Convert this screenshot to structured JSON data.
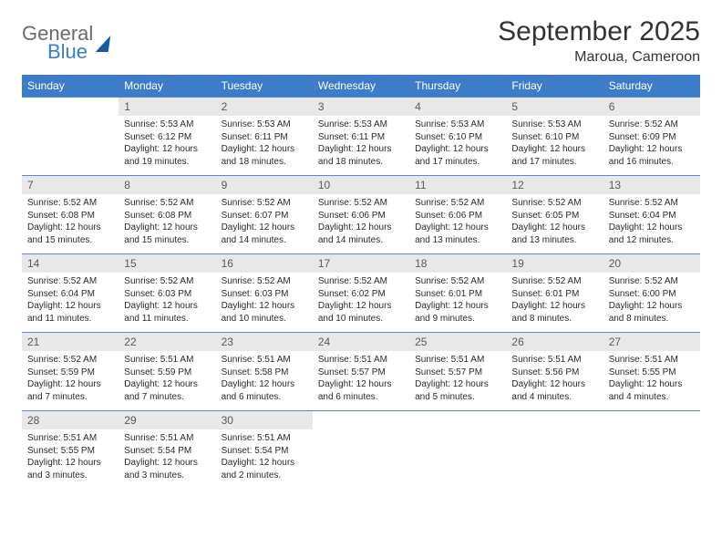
{
  "logo": {
    "word1": "General",
    "word2": "Blue"
  },
  "title": "September 2025",
  "subtitle": "Maroua, Cameroon",
  "colors": {
    "header_bg": "#3d7cc9",
    "header_text": "#ffffff",
    "daynum_bg": "#e8e8e8",
    "daynum_text": "#5a5a5a",
    "row_border": "#5a8bc4",
    "body_text": "#2a2a2a",
    "title_text": "#333333",
    "logo_gray": "#6a6a6a",
    "logo_blue": "#3d7cc9"
  },
  "day_headers": [
    "Sunday",
    "Monday",
    "Tuesday",
    "Wednesday",
    "Thursday",
    "Friday",
    "Saturday"
  ],
  "weeks": [
    [
      {
        "n": "",
        "lines": []
      },
      {
        "n": "1",
        "lines": [
          "Sunrise: 5:53 AM",
          "Sunset: 6:12 PM",
          "Daylight: 12 hours and 19 minutes."
        ]
      },
      {
        "n": "2",
        "lines": [
          "Sunrise: 5:53 AM",
          "Sunset: 6:11 PM",
          "Daylight: 12 hours and 18 minutes."
        ]
      },
      {
        "n": "3",
        "lines": [
          "Sunrise: 5:53 AM",
          "Sunset: 6:11 PM",
          "Daylight: 12 hours and 18 minutes."
        ]
      },
      {
        "n": "4",
        "lines": [
          "Sunrise: 5:53 AM",
          "Sunset: 6:10 PM",
          "Daylight: 12 hours and 17 minutes."
        ]
      },
      {
        "n": "5",
        "lines": [
          "Sunrise: 5:53 AM",
          "Sunset: 6:10 PM",
          "Daylight: 12 hours and 17 minutes."
        ]
      },
      {
        "n": "6",
        "lines": [
          "Sunrise: 5:52 AM",
          "Sunset: 6:09 PM",
          "Daylight: 12 hours and 16 minutes."
        ]
      }
    ],
    [
      {
        "n": "7",
        "lines": [
          "Sunrise: 5:52 AM",
          "Sunset: 6:08 PM",
          "Daylight: 12 hours and 15 minutes."
        ]
      },
      {
        "n": "8",
        "lines": [
          "Sunrise: 5:52 AM",
          "Sunset: 6:08 PM",
          "Daylight: 12 hours and 15 minutes."
        ]
      },
      {
        "n": "9",
        "lines": [
          "Sunrise: 5:52 AM",
          "Sunset: 6:07 PM",
          "Daylight: 12 hours and 14 minutes."
        ]
      },
      {
        "n": "10",
        "lines": [
          "Sunrise: 5:52 AM",
          "Sunset: 6:06 PM",
          "Daylight: 12 hours and 14 minutes."
        ]
      },
      {
        "n": "11",
        "lines": [
          "Sunrise: 5:52 AM",
          "Sunset: 6:06 PM",
          "Daylight: 12 hours and 13 minutes."
        ]
      },
      {
        "n": "12",
        "lines": [
          "Sunrise: 5:52 AM",
          "Sunset: 6:05 PM",
          "Daylight: 12 hours and 13 minutes."
        ]
      },
      {
        "n": "13",
        "lines": [
          "Sunrise: 5:52 AM",
          "Sunset: 6:04 PM",
          "Daylight: 12 hours and 12 minutes."
        ]
      }
    ],
    [
      {
        "n": "14",
        "lines": [
          "Sunrise: 5:52 AM",
          "Sunset: 6:04 PM",
          "Daylight: 12 hours and 11 minutes."
        ]
      },
      {
        "n": "15",
        "lines": [
          "Sunrise: 5:52 AM",
          "Sunset: 6:03 PM",
          "Daylight: 12 hours and 11 minutes."
        ]
      },
      {
        "n": "16",
        "lines": [
          "Sunrise: 5:52 AM",
          "Sunset: 6:03 PM",
          "Daylight: 12 hours and 10 minutes."
        ]
      },
      {
        "n": "17",
        "lines": [
          "Sunrise: 5:52 AM",
          "Sunset: 6:02 PM",
          "Daylight: 12 hours and 10 minutes."
        ]
      },
      {
        "n": "18",
        "lines": [
          "Sunrise: 5:52 AM",
          "Sunset: 6:01 PM",
          "Daylight: 12 hours and 9 minutes."
        ]
      },
      {
        "n": "19",
        "lines": [
          "Sunrise: 5:52 AM",
          "Sunset: 6:01 PM",
          "Daylight: 12 hours and 8 minutes."
        ]
      },
      {
        "n": "20",
        "lines": [
          "Sunrise: 5:52 AM",
          "Sunset: 6:00 PM",
          "Daylight: 12 hours and 8 minutes."
        ]
      }
    ],
    [
      {
        "n": "21",
        "lines": [
          "Sunrise: 5:52 AM",
          "Sunset: 5:59 PM",
          "Daylight: 12 hours and 7 minutes."
        ]
      },
      {
        "n": "22",
        "lines": [
          "Sunrise: 5:51 AM",
          "Sunset: 5:59 PM",
          "Daylight: 12 hours and 7 minutes."
        ]
      },
      {
        "n": "23",
        "lines": [
          "Sunrise: 5:51 AM",
          "Sunset: 5:58 PM",
          "Daylight: 12 hours and 6 minutes."
        ]
      },
      {
        "n": "24",
        "lines": [
          "Sunrise: 5:51 AM",
          "Sunset: 5:57 PM",
          "Daylight: 12 hours and 6 minutes."
        ]
      },
      {
        "n": "25",
        "lines": [
          "Sunrise: 5:51 AM",
          "Sunset: 5:57 PM",
          "Daylight: 12 hours and 5 minutes."
        ]
      },
      {
        "n": "26",
        "lines": [
          "Sunrise: 5:51 AM",
          "Sunset: 5:56 PM",
          "Daylight: 12 hours and 4 minutes."
        ]
      },
      {
        "n": "27",
        "lines": [
          "Sunrise: 5:51 AM",
          "Sunset: 5:55 PM",
          "Daylight: 12 hours and 4 minutes."
        ]
      }
    ],
    [
      {
        "n": "28",
        "lines": [
          "Sunrise: 5:51 AM",
          "Sunset: 5:55 PM",
          "Daylight: 12 hours and 3 minutes."
        ]
      },
      {
        "n": "29",
        "lines": [
          "Sunrise: 5:51 AM",
          "Sunset: 5:54 PM",
          "Daylight: 12 hours and 3 minutes."
        ]
      },
      {
        "n": "30",
        "lines": [
          "Sunrise: 5:51 AM",
          "Sunset: 5:54 PM",
          "Daylight: 12 hours and 2 minutes."
        ]
      },
      {
        "n": "",
        "lines": []
      },
      {
        "n": "",
        "lines": []
      },
      {
        "n": "",
        "lines": []
      },
      {
        "n": "",
        "lines": []
      }
    ]
  ]
}
